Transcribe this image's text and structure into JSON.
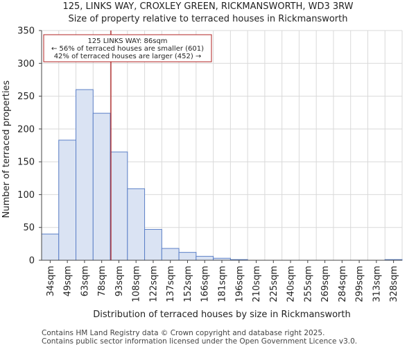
{
  "header": {
    "title": "125, LINKS WAY, CROXLEY GREEN, RICKMANSWORTH, WD3 3RW",
    "subtitle": "Size of property relative to terraced houses in Rickmansworth"
  },
  "chart_data": {
    "type": "bar",
    "title": "125, LINKS WAY, CROXLEY GREEN, RICKMANSWORTH, WD3 3RW",
    "subtitle": "Size of property relative to terraced houses in Rickmansworth",
    "xlabel": "Distribution of terraced houses by size in Rickmansworth",
    "ylabel": "Number of terraced properties",
    "categories": [
      "34sqm",
      "49sqm",
      "63sqm",
      "78sqm",
      "93sqm",
      "108sqm",
      "122sqm",
      "137sqm",
      "152sqm",
      "166sqm",
      "181sqm",
      "196sqm",
      "210sqm",
      "225sqm",
      "240sqm",
      "255sqm",
      "269sqm",
      "284sqm",
      "299sqm",
      "313sqm",
      "328sqm"
    ],
    "values": [
      40,
      183,
      260,
      224,
      165,
      109,
      47,
      18,
      12,
      6,
      3,
      1,
      0,
      0,
      0,
      0,
      0,
      0,
      0,
      0,
      1
    ],
    "ylim": [
      0,
      350
    ],
    "yticks": [
      0,
      50,
      100,
      150,
      200,
      250,
      300,
      350
    ],
    "grid": true,
    "bar_color": "#dae3f3",
    "bar_edge_color": "#5b7fc7",
    "marker": {
      "value_sqm": 86,
      "line_color": "#b22222",
      "annotation": [
        "125 LINKS WAY: 86sqm",
        "← 56% of terraced houses are smaller (601)",
        "42% of terraced houses are larger (452) →"
      ]
    }
  },
  "footer": {
    "line1": "Contains HM Land Registry data © Crown copyright and database right 2025.",
    "line2": "Contains public sector information licensed under the Open Government Licence v3.0."
  }
}
